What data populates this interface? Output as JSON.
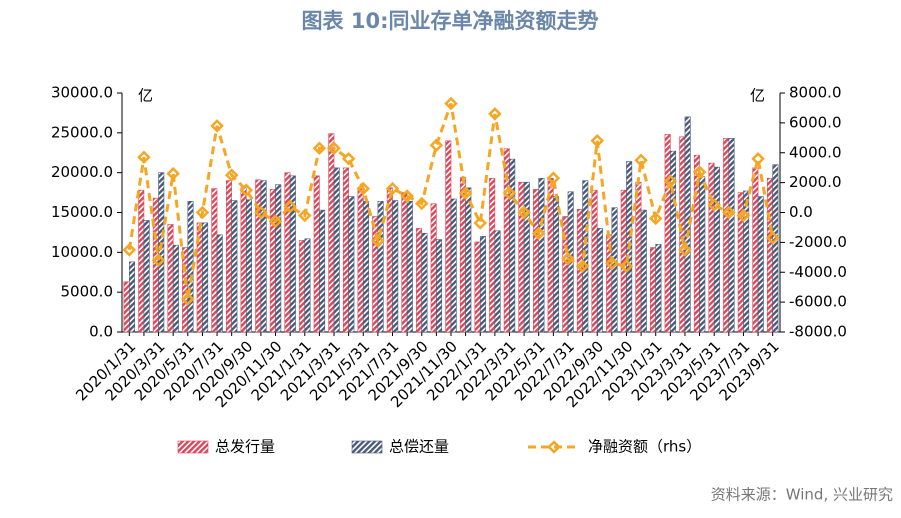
{
  "chart_data": {
    "type": "bar",
    "title": "图表 10:同业存单净融资额走势",
    "y_unit": "亿",
    "y2_unit": "亿",
    "source": "资料来源：Wind, 兴业研究",
    "categories": [
      "2020/1/31",
      null,
      "2020/3/31",
      null,
      "2020/5/31",
      null,
      "2020/7/31",
      null,
      "2020/9/30",
      null,
      "2020/11/30",
      null,
      "2021/1/31",
      null,
      "2021/3/31",
      null,
      "2021/5/31",
      null,
      "2021/7/31",
      null,
      "2021/9/30",
      null,
      "2021/11/30",
      null,
      "2022/1/31",
      null,
      "2022/3/31",
      null,
      "2022/5/31",
      null,
      "2022/7/31",
      null,
      "2022/9/30",
      null,
      "2022/11/30",
      null,
      "2023/1/31",
      null,
      "2023/3/31",
      null,
      "2023/5/31",
      null,
      "2023/7/31",
      null,
      "2023/9/31"
    ],
    "series": [
      {
        "name": "总发行量",
        "color": "#d9475a",
        "values": [
          6300,
          17800,
          16800,
          13500,
          10600,
          13700,
          18000,
          19000,
          18100,
          19100,
          17900,
          20000,
          11500,
          19600,
          24900,
          20600,
          18000,
          14500,
          18100,
          17500,
          13000,
          16100,
          24000,
          19400,
          11300,
          19300,
          23000,
          18800,
          17900,
          19300,
          14500,
          15400,
          17800,
          12200,
          17800,
          18800,
          10600,
          24800,
          24500,
          22200,
          21200,
          24300,
          17500,
          20600,
          19300
        ]
      },
      {
        "name": "总偿还量",
        "color": "#4a5b7a",
        "values": [
          8800,
          14000,
          20000,
          10900,
          16400,
          13700,
          12200,
          16500,
          16600,
          19000,
          18500,
          19600,
          11700,
          15300,
          20600,
          17000,
          16400,
          16400,
          16500,
          16400,
          12400,
          11600,
          16700,
          18100,
          12000,
          12700,
          21700,
          18800,
          19300,
          17000,
          17600,
          19000,
          13000,
          15600,
          21400,
          15300,
          11000,
          22700,
          27000,
          19500,
          20700,
          24300,
          17700,
          17000,
          21000
        ]
      },
      {
        "name": "净融资额（rhs）",
        "color": "#f5a623",
        "type": "line",
        "axis": "y2",
        "values": [
          -2500,
          3700,
          -3200,
          2600,
          -5800,
          0,
          5800,
          2500,
          1500,
          0,
          -600,
          400,
          -200,
          4300,
          4300,
          3600,
          1600,
          -1900,
          1600,
          1100,
          600,
          4500,
          7300,
          1300,
          -700,
          6600,
          1300,
          0,
          -1400,
          2300,
          -3100,
          -3600,
          4800,
          -3400,
          -3600,
          3500,
          -400,
          2100,
          -2500,
          2700,
          500,
          0,
          -200,
          3600,
          -1700
        ]
      }
    ],
    "ylim": [
      0,
      30000
    ],
    "yticks": [
      {
        "value": 0,
        "label": "0.0"
      },
      {
        "value": 5000,
        "label": "5000.0"
      },
      {
        "value": 10000,
        "label": "10000.0"
      },
      {
        "value": 15000,
        "label": "15000.0"
      },
      {
        "value": 20000,
        "label": "20000.0"
      },
      {
        "value": 25000,
        "label": "25000.0"
      },
      {
        "value": 30000,
        "label": "30000.0"
      }
    ],
    "y2lim": [
      -8000,
      8000
    ],
    "y2ticks": [
      {
        "value": -8000,
        "label": "-8000.0"
      },
      {
        "value": -6000,
        "label": "-6000.0"
      },
      {
        "value": -4000,
        "label": "-4000.0"
      },
      {
        "value": -2000,
        "label": "-2000.0"
      },
      {
        "value": 0,
        "label": "0.0"
      },
      {
        "value": 2000,
        "label": "2000.0"
      },
      {
        "value": 4000,
        "label": "4000.0"
      },
      {
        "value": 6000,
        "label": "6000.0"
      },
      {
        "value": 8000,
        "label": "8000.0"
      }
    ],
    "grid": false,
    "legend": "bottom"
  }
}
